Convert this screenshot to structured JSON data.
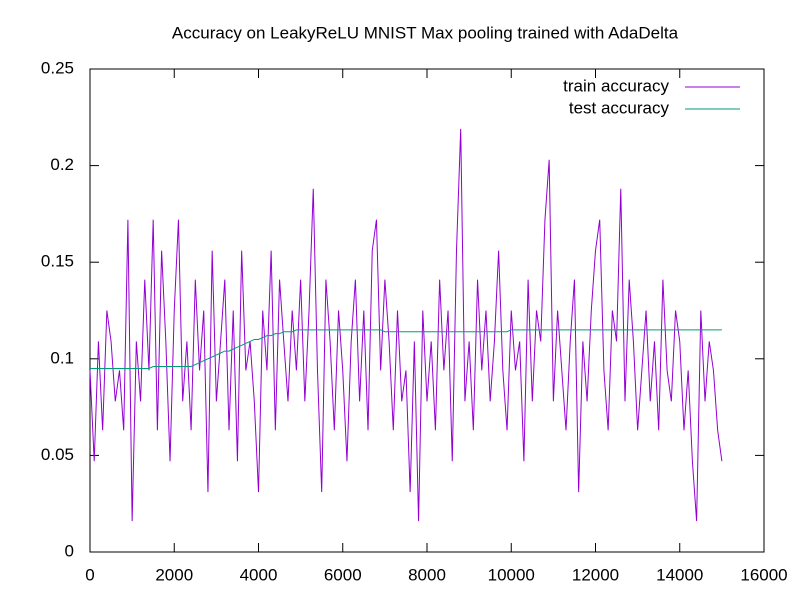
{
  "chart_data": {
    "type": "line",
    "title": "Accuracy on LeakyReLU MNIST Max pooling trained with AdaDelta",
    "x": [
      0,
      100,
      200,
      300,
      400,
      500,
      600,
      700,
      800,
      900,
      1000,
      1100,
      1200,
      1300,
      1400,
      1500,
      1600,
      1700,
      1800,
      1900,
      2000,
      2100,
      2200,
      2300,
      2400,
      2500,
      2600,
      2700,
      2800,
      2900,
      3000,
      3100,
      3200,
      3300,
      3400,
      3500,
      3600,
      3700,
      3800,
      3900,
      4000,
      4100,
      4200,
      4300,
      4400,
      4500,
      4600,
      4700,
      4800,
      4900,
      5000,
      5100,
      5200,
      5300,
      5400,
      5500,
      5600,
      5700,
      5800,
      5900,
      6000,
      6100,
      6200,
      6300,
      6400,
      6500,
      6600,
      6700,
      6800,
      6900,
      7000,
      7100,
      7200,
      7300,
      7400,
      7500,
      7600,
      7700,
      7800,
      7900,
      8000,
      8100,
      8200,
      8300,
      8400,
      8500,
      8600,
      8700,
      8800,
      8900,
      9000,
      9100,
      9200,
      9300,
      9400,
      9500,
      9600,
      9700,
      9800,
      9900,
      10000,
      10100,
      10200,
      10300,
      10400,
      10500,
      10600,
      10700,
      10800,
      10900,
      11000,
      11100,
      11200,
      11300,
      11400,
      11500,
      11600,
      11700,
      11800,
      11900,
      12000,
      12100,
      12200,
      12300,
      12400,
      12500,
      12600,
      12700,
      12800,
      12900,
      13000,
      13100,
      13200,
      13300,
      13400,
      13500,
      13600,
      13700,
      13800,
      13900,
      14000,
      14100,
      14200,
      14300,
      14400,
      14500,
      14600,
      14700,
      14800,
      14900,
      15000
    ],
    "series": [
      {
        "name": "train accuracy",
        "color": "#9400d3",
        "values": [
          0.094,
          0.047,
          0.109,
          0.063,
          0.125,
          0.109,
          0.078,
          0.094,
          0.063,
          0.172,
          0.016,
          0.109,
          0.078,
          0.141,
          0.094,
          0.172,
          0.063,
          0.156,
          0.109,
          0.047,
          0.125,
          0.172,
          0.078,
          0.109,
          0.063,
          0.141,
          0.094,
          0.125,
          0.031,
          0.156,
          0.078,
          0.109,
          0.141,
          0.063,
          0.125,
          0.047,
          0.156,
          0.094,
          0.109,
          0.078,
          0.031,
          0.125,
          0.094,
          0.156,
          0.063,
          0.141,
          0.109,
          0.078,
          0.125,
          0.094,
          0.141,
          0.078,
          0.125,
          0.188,
          0.094,
          0.031,
          0.141,
          0.109,
          0.063,
          0.125,
          0.094,
          0.047,
          0.109,
          0.141,
          0.078,
          0.125,
          0.063,
          0.156,
          0.172,
          0.094,
          0.141,
          0.109,
          0.063,
          0.125,
          0.078,
          0.094,
          0.031,
          0.109,
          0.016,
          0.125,
          0.078,
          0.109,
          0.063,
          0.141,
          0.094,
          0.125,
          0.047,
          0.156,
          0.219,
          0.078,
          0.109,
          0.063,
          0.141,
          0.094,
          0.125,
          0.078,
          0.109,
          0.156,
          0.094,
          0.063,
          0.125,
          0.094,
          0.109,
          0.047,
          0.141,
          0.078,
          0.125,
          0.109,
          0.172,
          0.203,
          0.078,
          0.125,
          0.094,
          0.063,
          0.109,
          0.141,
          0.031,
          0.109,
          0.078,
          0.125,
          0.156,
          0.172,
          0.094,
          0.063,
          0.125,
          0.109,
          0.188,
          0.078,
          0.141,
          0.109,
          0.063,
          0.094,
          0.125,
          0.078,
          0.109,
          0.063,
          0.141,
          0.094,
          0.078,
          0.125,
          0.109,
          0.063,
          0.094,
          0.047,
          0.016,
          0.125,
          0.078,
          0.109,
          0.094,
          0.063,
          0.047
        ]
      },
      {
        "name": "test accuracy",
        "color": "#009e73",
        "values": [
          0.095,
          0.095,
          0.095,
          0.095,
          0.095,
          0.095,
          0.095,
          0.095,
          0.095,
          0.095,
          0.095,
          0.095,
          0.095,
          0.095,
          0.095,
          0.096,
          0.096,
          0.096,
          0.096,
          0.096,
          0.096,
          0.096,
          0.096,
          0.096,
          0.096,
          0.097,
          0.098,
          0.099,
          0.1,
          0.101,
          0.102,
          0.103,
          0.104,
          0.104,
          0.105,
          0.106,
          0.107,
          0.108,
          0.109,
          0.11,
          0.11,
          0.111,
          0.112,
          0.112,
          0.113,
          0.113,
          0.114,
          0.114,
          0.114,
          0.115,
          0.115,
          0.115,
          0.115,
          0.115,
          0.115,
          0.115,
          0.115,
          0.115,
          0.115,
          0.115,
          0.115,
          0.115,
          0.115,
          0.115,
          0.115,
          0.115,
          0.115,
          0.115,
          0.115,
          0.115,
          0.114,
          0.114,
          0.114,
          0.114,
          0.114,
          0.114,
          0.114,
          0.114,
          0.114,
          0.114,
          0.114,
          0.114,
          0.114,
          0.114,
          0.114,
          0.114,
          0.114,
          0.114,
          0.114,
          0.114,
          0.114,
          0.114,
          0.114,
          0.114,
          0.114,
          0.114,
          0.114,
          0.114,
          0.114,
          0.114,
          0.115,
          0.115,
          0.115,
          0.115,
          0.115,
          0.115,
          0.115,
          0.115,
          0.115,
          0.115,
          0.115,
          0.115,
          0.115,
          0.115,
          0.115,
          0.115,
          0.115,
          0.115,
          0.115,
          0.115,
          0.115,
          0.115,
          0.115,
          0.115,
          0.115,
          0.115,
          0.115,
          0.115,
          0.115,
          0.115,
          0.115,
          0.115,
          0.115,
          0.115,
          0.115,
          0.115,
          0.115,
          0.115,
          0.115,
          0.115,
          0.115,
          0.115,
          0.115,
          0.115,
          0.115,
          0.115,
          0.115,
          0.115,
          0.115,
          0.115,
          0.115
        ]
      }
    ],
    "xlim": [
      0,
      16000
    ],
    "xticks": [
      0,
      2000,
      4000,
      6000,
      8000,
      10000,
      12000,
      14000,
      16000
    ],
    "ylim": [
      0,
      0.25
    ],
    "yticks": [
      0,
      0.05,
      0.1,
      0.15,
      0.2,
      0.25
    ],
    "grid": false,
    "legend": "top-right"
  }
}
